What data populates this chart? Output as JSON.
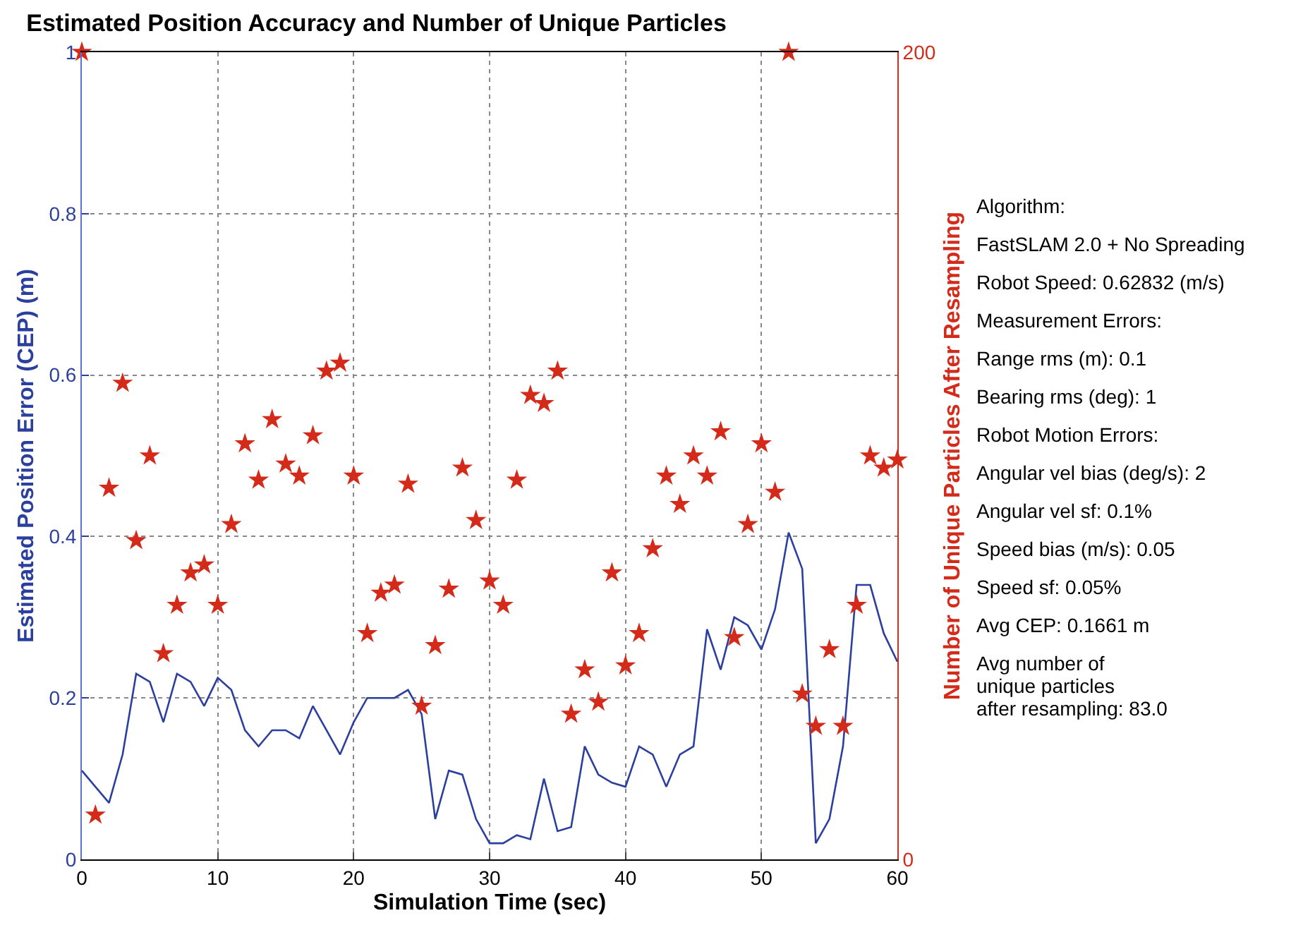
{
  "chart_data": {
    "type": "line",
    "title": "Estimated Position Accuracy and Number of Unique Particles",
    "xlabel": "Simulation Time (sec)",
    "ylabel": "Estimated Position Error (CEP) (m)",
    "y2label": "Number of Unique Particles After Resampling",
    "x": [
      0,
      1,
      2,
      3,
      4,
      5,
      6,
      7,
      8,
      9,
      10,
      11,
      12,
      13,
      14,
      15,
      16,
      17,
      18,
      19,
      20,
      21,
      22,
      23,
      24,
      25,
      26,
      27,
      28,
      29,
      30,
      31,
      32,
      33,
      34,
      35,
      36,
      37,
      38,
      39,
      40,
      41,
      42,
      43,
      44,
      45,
      46,
      47,
      48,
      49,
      50,
      51,
      52,
      53,
      54,
      55,
      56,
      57,
      58,
      59,
      60
    ],
    "series": [
      {
        "marker": "none",
        "color": "#2b3f9e",
        "values": [
          0.11,
          0.09,
          0.07,
          0.13,
          0.23,
          0.22,
          0.17,
          0.23,
          0.22,
          0.19,
          0.225,
          0.21,
          0.16,
          0.14,
          0.16,
          0.16,
          0.15,
          0.19,
          0.16,
          0.13,
          0.17,
          0.2,
          0.2,
          0.2,
          0.21,
          0.18,
          0.05,
          0.11,
          0.105,
          0.05,
          0.02,
          0.02,
          0.03,
          0.025,
          0.1,
          0.035,
          0.04,
          0.14,
          0.105,
          0.095,
          0.09,
          0.14,
          0.13,
          0.09,
          0.13,
          0.14,
          0.285,
          0.235,
          0.3,
          0.29,
          0.26,
          0.31,
          0.405,
          0.36,
          0.02,
          0.05,
          0.14,
          0.34,
          0.34,
          0.28,
          0.245
        ]
      },
      {
        "type": "scatter",
        "marker": "star",
        "axis": "y2",
        "color": "#d42a1a",
        "values": [
          200,
          11,
          92,
          118,
          79,
          100,
          51,
          63,
          71,
          73,
          63,
          83,
          103,
          94,
          109,
          98,
          95,
          105,
          121,
          123,
          95,
          56,
          66,
          68,
          93,
          38,
          53,
          67,
          97,
          84,
          69,
          63,
          94,
          115,
          113,
          121,
          36,
          47,
          39,
          71,
          48,
          56,
          77,
          95,
          88,
          100,
          95,
          106,
          55,
          83,
          103,
          91,
          200,
          41,
          33,
          52,
          33,
          63,
          100,
          97,
          99
        ]
      }
    ],
    "xlim": [
      0,
      60
    ],
    "xticks": [
      0,
      10,
      20,
      30,
      40,
      50,
      60
    ],
    "ylim": [
      0,
      1
    ],
    "yticks": [
      0,
      0.2,
      0.4,
      0.6,
      0.8,
      1
    ],
    "y2lim": [
      0,
      200
    ],
    "y2ticks": [
      0,
      200
    ],
    "grid": true,
    "legend": false,
    "annotations": [
      "Algorithm:",
      "FastSLAM 2.0 + No Spreading",
      "Robot Speed: 0.62832 (m/s)",
      "Measurement Errors:",
      "Range rms (m): 0.1",
      "Bearing rms (deg): 1",
      "Robot Motion Errors:",
      "Angular vel bias (deg/s): 2",
      "Angular vel sf: 0.1%",
      "Speed bias (m/s): 0.05",
      "Speed sf: 0.05%",
      "Avg CEP: 0.1661 m",
      "Avg number of\nunique particles\nafter resampling: 83.0"
    ]
  }
}
